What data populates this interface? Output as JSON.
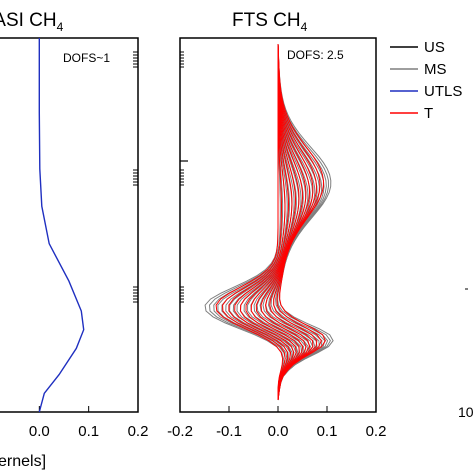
{
  "chart_data": [
    {
      "type": "line",
      "title_main": "IASI CH",
      "title_sub": "4",
      "annotation": "DOFS~1",
      "x_ticks": [
        "0.1",
        "0.0",
        "0.1",
        "0.2"
      ],
      "xlim": [
        -0.1,
        0.2
      ],
      "x_axis_label_fragment": "ernels]",
      "series": [
        {
          "name": "UTLS",
          "color": "#1f2fc0",
          "points": [
            [
              0.0,
              1.0
            ],
            [
              0.0,
              0.8
            ],
            [
              0.001,
              0.65
            ],
            [
              0.005,
              0.55
            ],
            [
              0.02,
              0.45
            ],
            [
              0.06,
              0.35
            ],
            [
              0.085,
              0.27
            ],
            [
              0.09,
              0.22
            ],
            [
              0.075,
              0.17
            ],
            [
              0.04,
              0.1
            ],
            [
              0.01,
              0.05
            ],
            [
              0.0,
              0.0
            ]
          ]
        }
      ]
    },
    {
      "type": "line",
      "title_main": "FTS CH",
      "title_sub": "4",
      "annotation": "DOFS: 2.5",
      "x_ticks": [
        "-0.2",
        "-0.1",
        "0.0",
        "0.1",
        "0.2"
      ],
      "xlim": [
        -0.2,
        0.2
      ],
      "series": [
        {
          "name": "MS",
          "color": "#7f7f7f",
          "count": 24
        },
        {
          "name": "T",
          "color": "#ff0000",
          "count": 14
        }
      ]
    }
  ],
  "legend": [
    {
      "label": "US",
      "color": "#000000"
    },
    {
      "label": "MS",
      "color": "#7f7f7f"
    },
    {
      "label": "UTLS",
      "color": "#1f2fc0"
    },
    {
      "label": "T",
      "color": "#ff0000"
    }
  ],
  "right_fragment": {
    "tick_label": "10"
  }
}
